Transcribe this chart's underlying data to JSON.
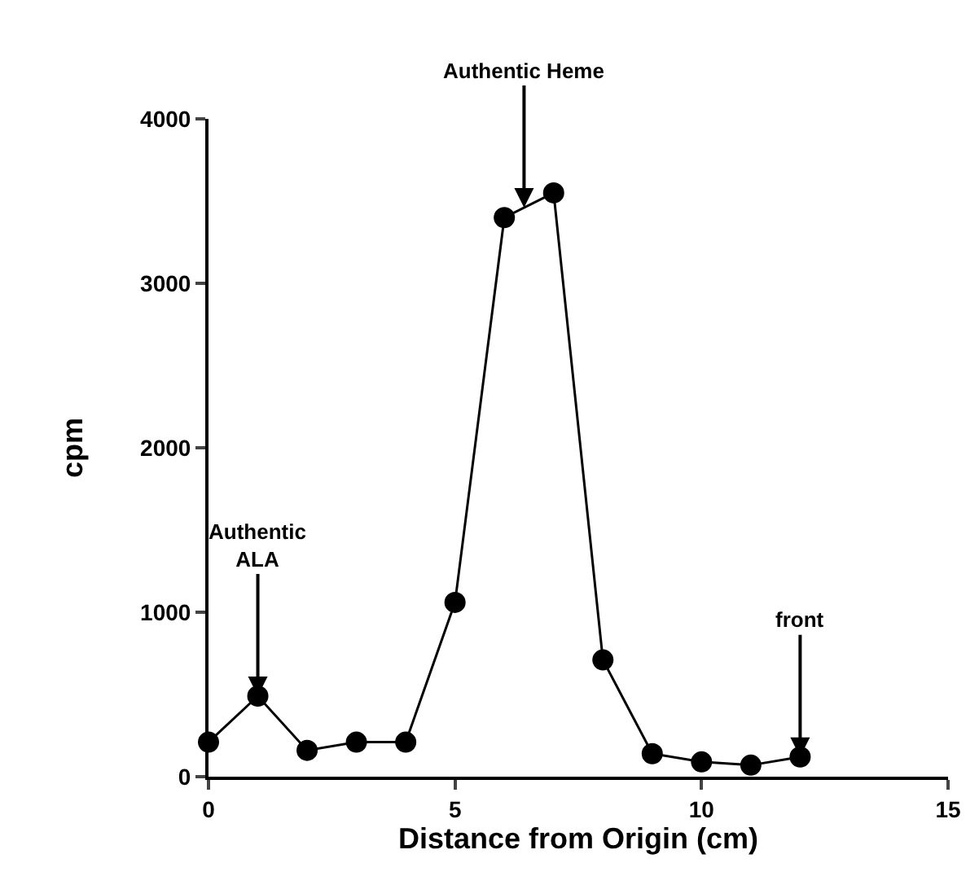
{
  "chart_data": {
    "type": "line",
    "xlabel": "Distance from Origin (cm)",
    "ylabel": "cpm",
    "x": [
      0,
      1,
      2,
      3,
      4,
      5,
      6,
      7,
      8,
      9,
      10,
      11,
      12
    ],
    "series": [
      {
        "color": "#000000",
        "values": [
          210,
          490,
          160,
          210,
          210,
          1060,
          3400,
          3550,
          710,
          140,
          90,
          70,
          120
        ]
      }
    ],
    "xlim": [
      0,
      15
    ],
    "xticks": [
      0,
      5,
      10,
      15
    ],
    "ylim": [
      0,
      4000
    ],
    "yticks": [
      0,
      1000,
      2000,
      3000,
      4000
    ],
    "legend": false,
    "marker": "circle",
    "line_style": "solid",
    "annotations": [
      {
        "text": "Authentic Heme",
        "x": 6.4,
        "y": 3460
      },
      {
        "text": "Authentic\nALA",
        "x": 1,
        "y": 490
      },
      {
        "text": "front",
        "x": 12,
        "y": 120
      }
    ]
  }
}
